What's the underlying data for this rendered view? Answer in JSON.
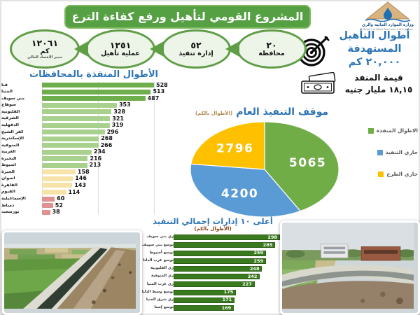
{
  "header": {
    "title": "المشروع القومي لتأهيل ورفع كفاءة الترع"
  },
  "logo": {
    "name_ar": "وزارة الموارد المائية والري",
    "name_en": "Ministry of Water Resources and Irrigation"
  },
  "stats_chain": [
    {
      "value": "٢٠",
      "label": "محافظة",
      "note": ""
    },
    {
      "value": "٥٢",
      "label": "إدارة تنفيذ",
      "note": ""
    },
    {
      "value": "١٢٥١",
      "label": "عملية تأهيل",
      "note": ""
    },
    {
      "value": "١٢٠٦١",
      "label": "كم",
      "note": "تدبير الاعتماد المالي"
    }
  ],
  "target_block": {
    "line1": "أطوال التأهيل",
    "line2": "المستهدفة",
    "line3": "٢٠,٠٠٠ كم"
  },
  "value_block": {
    "label": "قيمة المنفذ",
    "value": "١٨,١٥ مليار جنيه"
  },
  "chart_data": [
    {
      "type": "bar",
      "orientation": "horizontal",
      "title": "الأطوال المنفذة بالمحافظات",
      "categories": [
        "قنا",
        "المنيا",
        "بني سويف",
        "سوهاج",
        "القليوبية",
        "الشرقية",
        "الدقهلية",
        "كفر الشيخ",
        "الإسكندرية",
        "المنوفية",
        "الغربية",
        "البحيرة",
        "أسيوط",
        "الجيزة",
        "اسوان",
        "القاهرة",
        "الفيوم",
        "الإسماعيلية",
        "دمياط",
        "بورسعيد"
      ],
      "values": [
        528,
        513,
        487,
        353,
        328,
        321,
        319,
        296,
        268,
        266,
        234,
        216,
        213,
        158,
        146,
        143,
        114,
        60,
        52,
        38
      ],
      "color_keys": [
        "dark",
        "dark",
        "dark",
        "mid",
        "mid",
        "mid",
        "mid",
        "mid",
        "mid",
        "mid",
        "mid",
        "mid",
        "mid",
        "low",
        "low",
        "low",
        "low",
        "critical",
        "critical",
        "critical"
      ],
      "palette": {
        "dark": "#6fae4c",
        "mid": "#a9d18e",
        "low": "#f7e3a8",
        "critical": "#e29191"
      },
      "xlim": [
        0,
        550
      ],
      "grid": true
    },
    {
      "type": "pie",
      "title": "موقف التنفيذ العام",
      "subtitle": "(الأطوال بالكم)",
      "slices": [
        {
          "label": "الاطوال المنفذة",
          "value": 5065,
          "color": "#70ad47"
        },
        {
          "label": "جاري التنفيذ",
          "value": 4200,
          "color": "#5b9bd5"
        },
        {
          "label": "جاري الطرح",
          "value": 2796,
          "color": "#ffc000"
        }
      ],
      "legend_position": "right",
      "label_color": "#ffffff"
    },
    {
      "type": "bar",
      "orientation": "horizontal",
      "title": "أعلى ١٠ إدارات إجمالي التنفيذ",
      "subtitle": "(الأطوال بالكم)",
      "categories": [
        "ري بني سويف",
        "توسع بني سويف",
        "توسع أسيوط",
        "توسع غرب الدلتا",
        "ري القليوبية",
        "ري المنوفية",
        "ري غرب المنيا",
        "توسع وسط الدلتا",
        "ري شرق المنيا",
        "توسع إسنا"
      ],
      "values": [
        298,
        285,
        259,
        259,
        248,
        242,
        227,
        175,
        171,
        169
      ],
      "bar_color": "#3a7a1e",
      "value_color": "#ffffff",
      "xlim": [
        0,
        300
      ]
    }
  ],
  "photos": [
    {
      "alt": "ترعة مبطنة بعد التأهيل وسط أراضٍ زراعية"
    },
    {
      "alt": "ترعة مبطنة متعرجة بعد التأهيل بجوار مبانٍ"
    }
  ]
}
